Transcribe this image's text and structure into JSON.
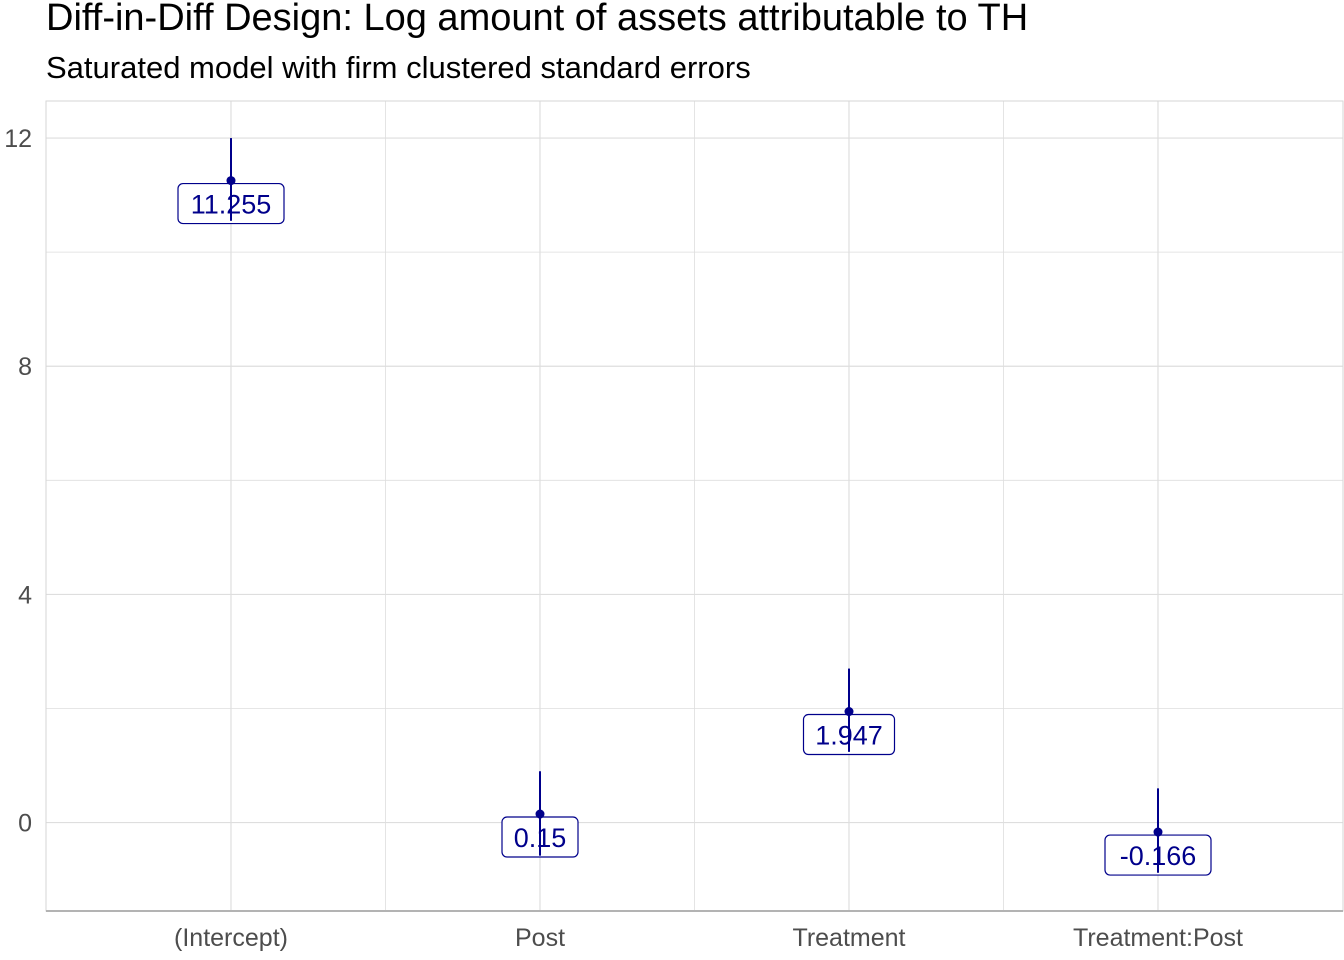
{
  "title": "Diff-in-Diff Design: Log amount of assets attributable to TH",
  "subtitle": "Saturated model with firm clustered standard errors",
  "colors": {
    "point": "#00008b",
    "label_text": "#00008b",
    "grid": "#dedede",
    "axis_text": "#4d4d4d"
  },
  "chart_data": {
    "type": "scatter",
    "title": "Diff-in-Diff Design: Log amount of assets attributable to TH",
    "subtitle": "Saturated model with firm clustered standard errors",
    "xlabel": "",
    "ylabel": "",
    "categories": [
      "(Intercept)",
      "Post",
      "Treatment",
      "Treatment:Post"
    ],
    "values": [
      11.255,
      0.15,
      1.947,
      -0.166
    ],
    "ci_lower": [
      10.55,
      -0.58,
      1.24,
      -0.88
    ],
    "ci_upper": [
      12.0,
      0.9,
      2.7,
      0.6
    ],
    "labels": [
      "11.255",
      "0.15",
      "1.947",
      "-0.166"
    ],
    "ylim": [
      -1.55,
      12.65
    ],
    "y_ticks": [
      0,
      4,
      8,
      12
    ],
    "y_tick_labels": [
      "0",
      "4",
      "8",
      "12"
    ],
    "grid": true,
    "legend": "none"
  }
}
